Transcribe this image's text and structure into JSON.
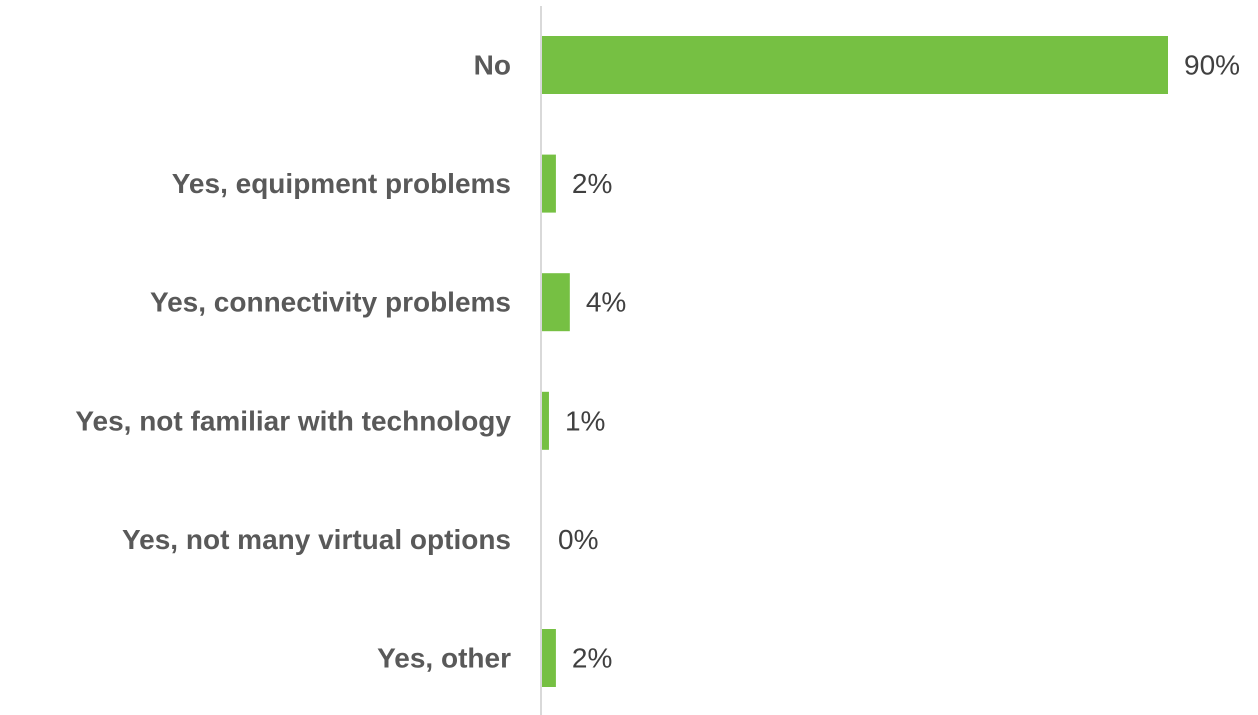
{
  "chart_data": {
    "type": "bar",
    "orientation": "horizontal",
    "title": "",
    "xlabel": "",
    "ylabel": "",
    "categories": [
      "No",
      "Yes, equipment problems",
      "Yes, connectivity problems",
      "Yes, not familiar with technology",
      "Yes, not many virtual options",
      "Yes, other"
    ],
    "values": [
      90,
      2,
      4,
      1,
      0,
      2
    ],
    "value_labels": [
      "90%",
      "2%",
      "4%",
      "1%",
      "0%",
      "2%"
    ],
    "value_unit": "%",
    "xlim": [
      0,
      90
    ],
    "grid": false,
    "legend": "none",
    "colors": {
      "bar": "#76c043",
      "category_text": "#595959",
      "value_text": "#404040",
      "axis": "#d9d9d9"
    }
  }
}
